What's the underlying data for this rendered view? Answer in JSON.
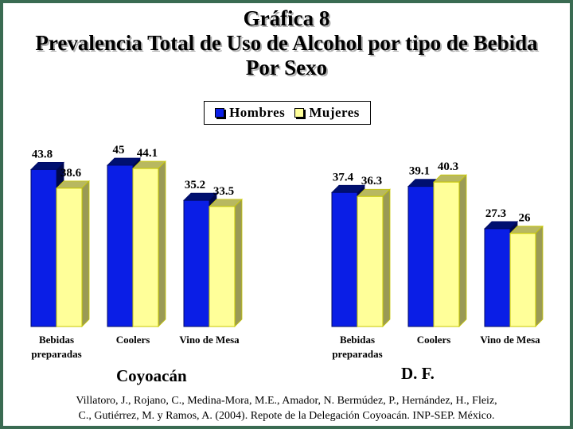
{
  "title_lines": [
    "Gráfica 8",
    "Prevalencia Total de Uso de Alcohol por tipo de Bebida",
    "Por Sexo"
  ],
  "legend": {
    "items": [
      {
        "label": "Hombres",
        "color": "#0a1ee6"
      },
      {
        "label": "Mujeres",
        "color": "#ffff99"
      }
    ]
  },
  "chart_data": [
    {
      "type": "bar",
      "panel_label": "Coyoacán",
      "categories": [
        [
          "Bebidas",
          "preparadas"
        ],
        [
          "Coolers"
        ],
        [
          "Vino de Mesa"
        ]
      ],
      "series": [
        {
          "name": "Hombres",
          "values": [
            43.8,
            45,
            35.2
          ],
          "labels": [
            "43.8",
            "45",
            "35.2"
          ]
        },
        {
          "name": "Mujeres",
          "values": [
            38.6,
            44.1,
            33.5
          ],
          "labels": [
            "38.6",
            "44.1",
            "33.5"
          ]
        }
      ],
      "ylim": [
        0,
        45
      ]
    },
    {
      "type": "bar",
      "panel_label": "D. F.",
      "categories": [
        [
          "Bebidas",
          "preparadas"
        ],
        [
          "Coolers"
        ],
        [
          "Vino de Mesa"
        ]
      ],
      "series": [
        {
          "name": "Hombres",
          "values": [
            37.4,
            39.1,
            27.3
          ],
          "labels": [
            "37.4",
            "39.1",
            "27.3"
          ]
        },
        {
          "name": "Mujeres",
          "values": [
            36.3,
            40.3,
            26
          ],
          "labels": [
            "36.3",
            "40.3",
            "26"
          ]
        }
      ],
      "ylim": [
        0,
        45
      ]
    }
  ],
  "source_lines": [
    "Villatoro, J., Rojano, C., Medina-Mora, M.E., Amador, N. Bermúdez, P., Hernández, H., Fleiz,",
    "C., Gutiérrez, M. y Ramos, A. (2004). Repote de la Delegación Coyoacán. INP-SEP. México."
  ]
}
